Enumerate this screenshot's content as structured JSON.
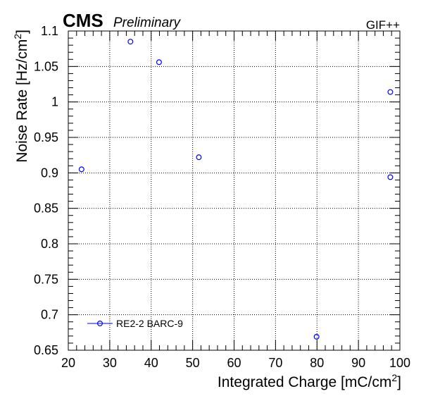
{
  "header": {
    "cms_label": "CMS",
    "preliminary_label": "Preliminary",
    "facility_label": "GIF++"
  },
  "chart_data": {
    "type": "scatter",
    "title": "",
    "xlabel": "Integrated Charge [mC/cm²]",
    "ylabel": "Noise Rate [Hz/cm²]",
    "xlim": [
      20,
      100
    ],
    "ylim": [
      0.65,
      1.1
    ],
    "xticks": [
      "20",
      "30",
      "40",
      "50",
      "60",
      "70",
      "80",
      "90",
      "100"
    ],
    "yticks": [
      "0.65",
      "0.7",
      "0.75",
      "0.8",
      "0.85",
      "0.9",
      "0.95",
      "1",
      "1.05",
      "1.1"
    ],
    "grid": true,
    "legend_position": "bottom-left",
    "series": [
      {
        "name": "RE2-2 BARC-9",
        "color": "#0000ff",
        "marker": "open-circle",
        "points": [
          {
            "x": 23.2,
            "y": 0.905
          },
          {
            "x": 35.0,
            "y": 1.085
          },
          {
            "x": 41.9,
            "y": 1.056
          },
          {
            "x": 51.5,
            "y": 0.922
          },
          {
            "x": 79.9,
            "y": 0.669
          },
          {
            "x": 97.7,
            "y": 1.014
          },
          {
            "x": 97.7,
            "y": 0.894
          }
        ]
      }
    ]
  }
}
